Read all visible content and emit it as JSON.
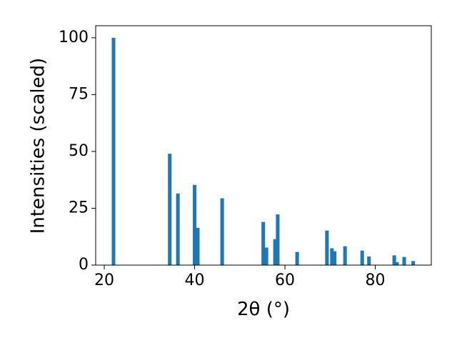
{
  "chart_data": {
    "type": "bar",
    "x_label": "2θ (°)",
    "y_label": "Intensities (scaled)",
    "x": [
      22.05,
      34.5,
      36.3,
      40.0,
      40.7,
      46.1,
      55.2,
      55.9,
      57.8,
      58.4,
      62.7,
      69.3,
      70.4,
      71.0,
      73.3,
      77.1,
      78.6,
      84.2,
      84.8,
      86.4,
      88.4
    ],
    "values": [
      100,
      49,
      31.5,
      35.3,
      16.4,
      29.4,
      19,
      7.7,
      11.4,
      22.3,
      5.8,
      15.2,
      7.4,
      6.1,
      8.3,
      6.4,
      3.8,
      4.3,
      1.3,
      3.6,
      1.8
    ],
    "color": "#1f77b4",
    "xlim": [
      18.1,
      92.4
    ],
    "xticks": [
      20,
      40,
      60,
      80
    ],
    "ylim": [
      0,
      105.3
    ],
    "yticks": [
      0,
      25,
      50,
      75,
      100
    ],
    "grid": false
  }
}
